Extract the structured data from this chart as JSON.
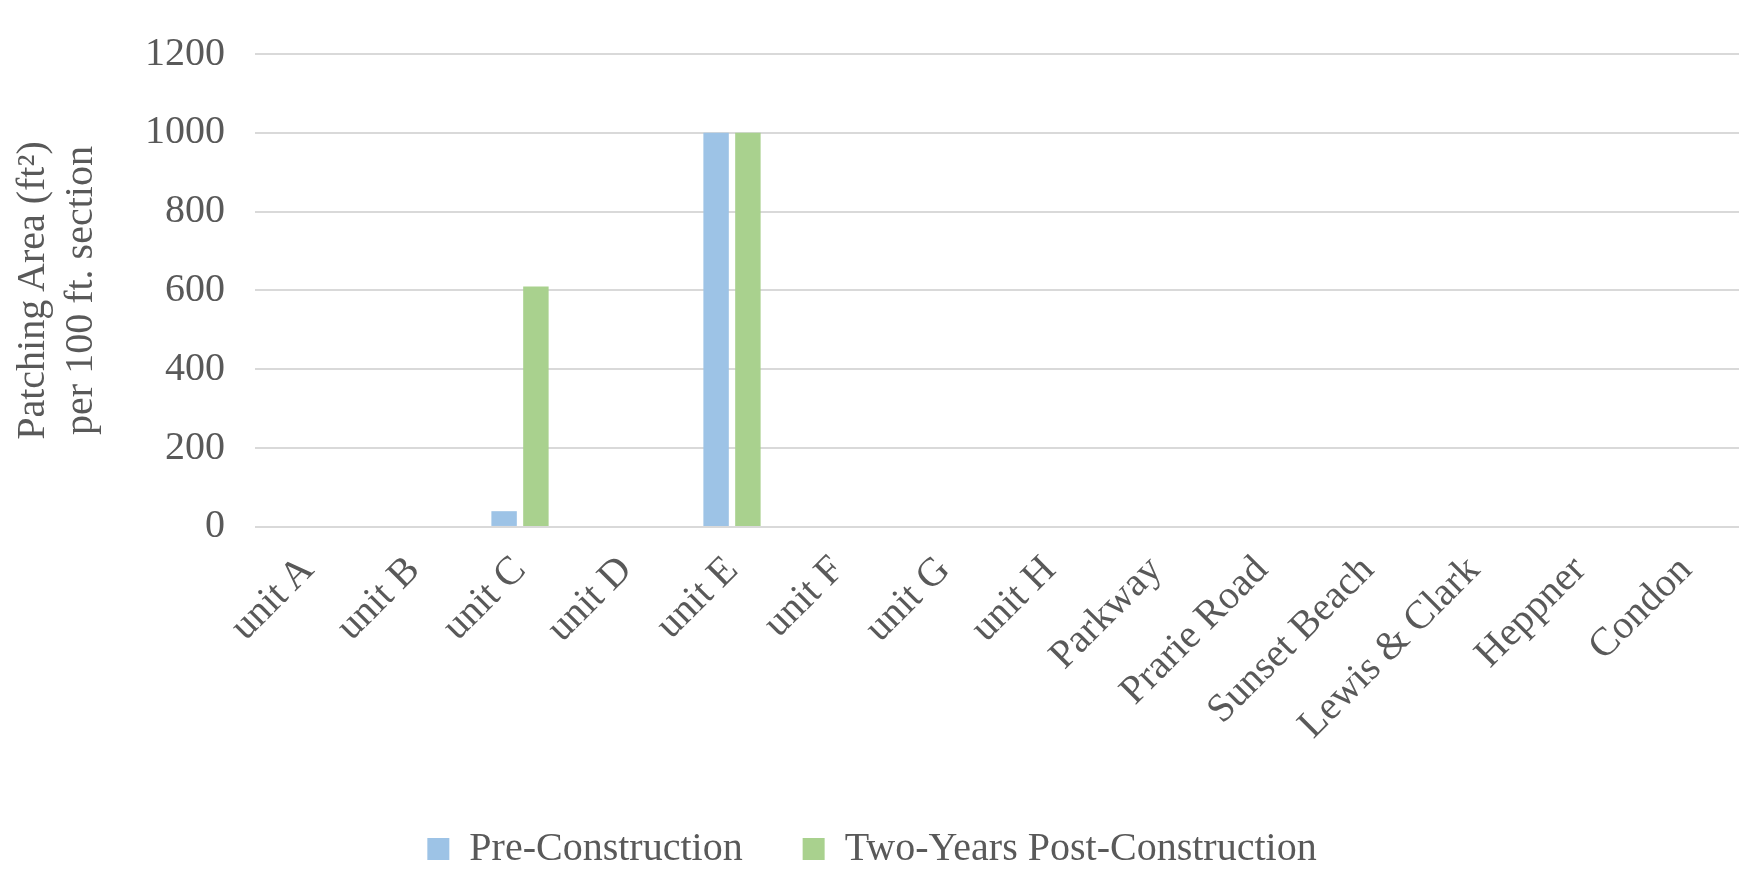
{
  "chart_data": {
    "type": "bar",
    "ylabel": [
      "Patching Area (ft²)",
      "per 100 ft. section"
    ],
    "categories": [
      "unit A",
      "unit B",
      "unit C",
      "unit D",
      "unit E",
      "unit F",
      "unit G",
      "unit H",
      "Parkway",
      "Prarie Road",
      "Sunset Beach",
      "Lewis & Clark",
      "Heppner",
      "Condon"
    ],
    "series": [
      {
        "name": "Pre-Construction",
        "color": "#9dc3e6",
        "values": [
          0,
          0,
          40,
          0,
          1000,
          0,
          0,
          0,
          0,
          0,
          0,
          0,
          0,
          0
        ]
      },
      {
        "name": "Two-Years Post-Construction",
        "color": "#a9d18e",
        "values": [
          0,
          0,
          610,
          0,
          1000,
          0,
          0,
          0,
          0,
          0,
          0,
          0,
          0,
          0
        ]
      }
    ],
    "ylim": [
      0,
      1200
    ],
    "yticks": [
      0,
      200,
      400,
      600,
      800,
      1000,
      1200
    ],
    "grid": "y",
    "legend": "bottom"
  }
}
